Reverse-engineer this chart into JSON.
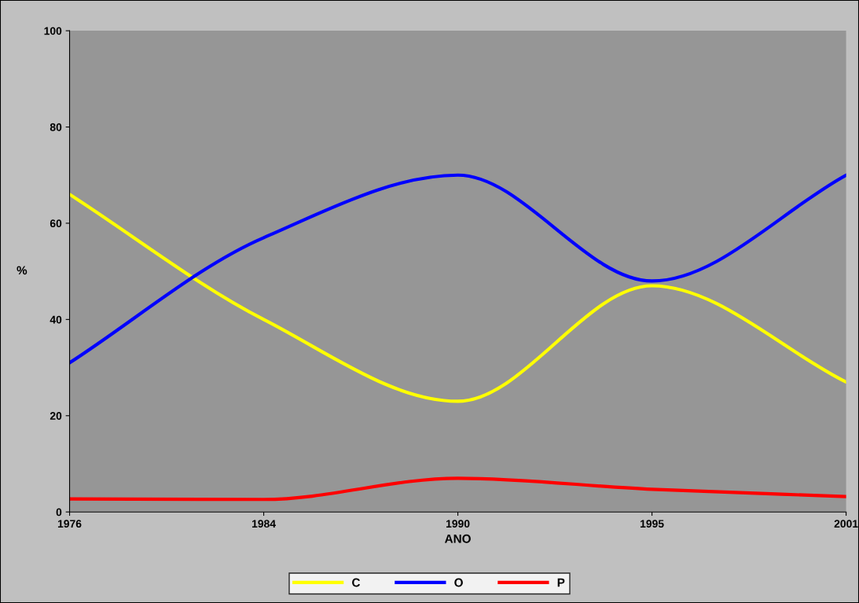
{
  "chart_data": {
    "type": "line",
    "xlabel": "ANO",
    "ylabel": "%",
    "categories": [
      "1976",
      "1984",
      "1990",
      "1995",
      "2001"
    ],
    "series": [
      {
        "name": "C",
        "color": "#ffff00",
        "values": [
          66,
          40,
          23,
          47,
          27
        ]
      },
      {
        "name": "O",
        "color": "#0000ff",
        "values": [
          31,
          57,
          70,
          48,
          70
        ]
      },
      {
        "name": "P",
        "color": "#ff0000",
        "values": [
          2.7,
          2.6,
          7,
          4.7,
          3.2
        ]
      }
    ],
    "ylim": [
      0,
      100
    ],
    "yticks": [
      0,
      20,
      40,
      60,
      80,
      100
    ],
    "grid": false,
    "legend": "bottom",
    "marker": "none",
    "line_style": "solid"
  }
}
